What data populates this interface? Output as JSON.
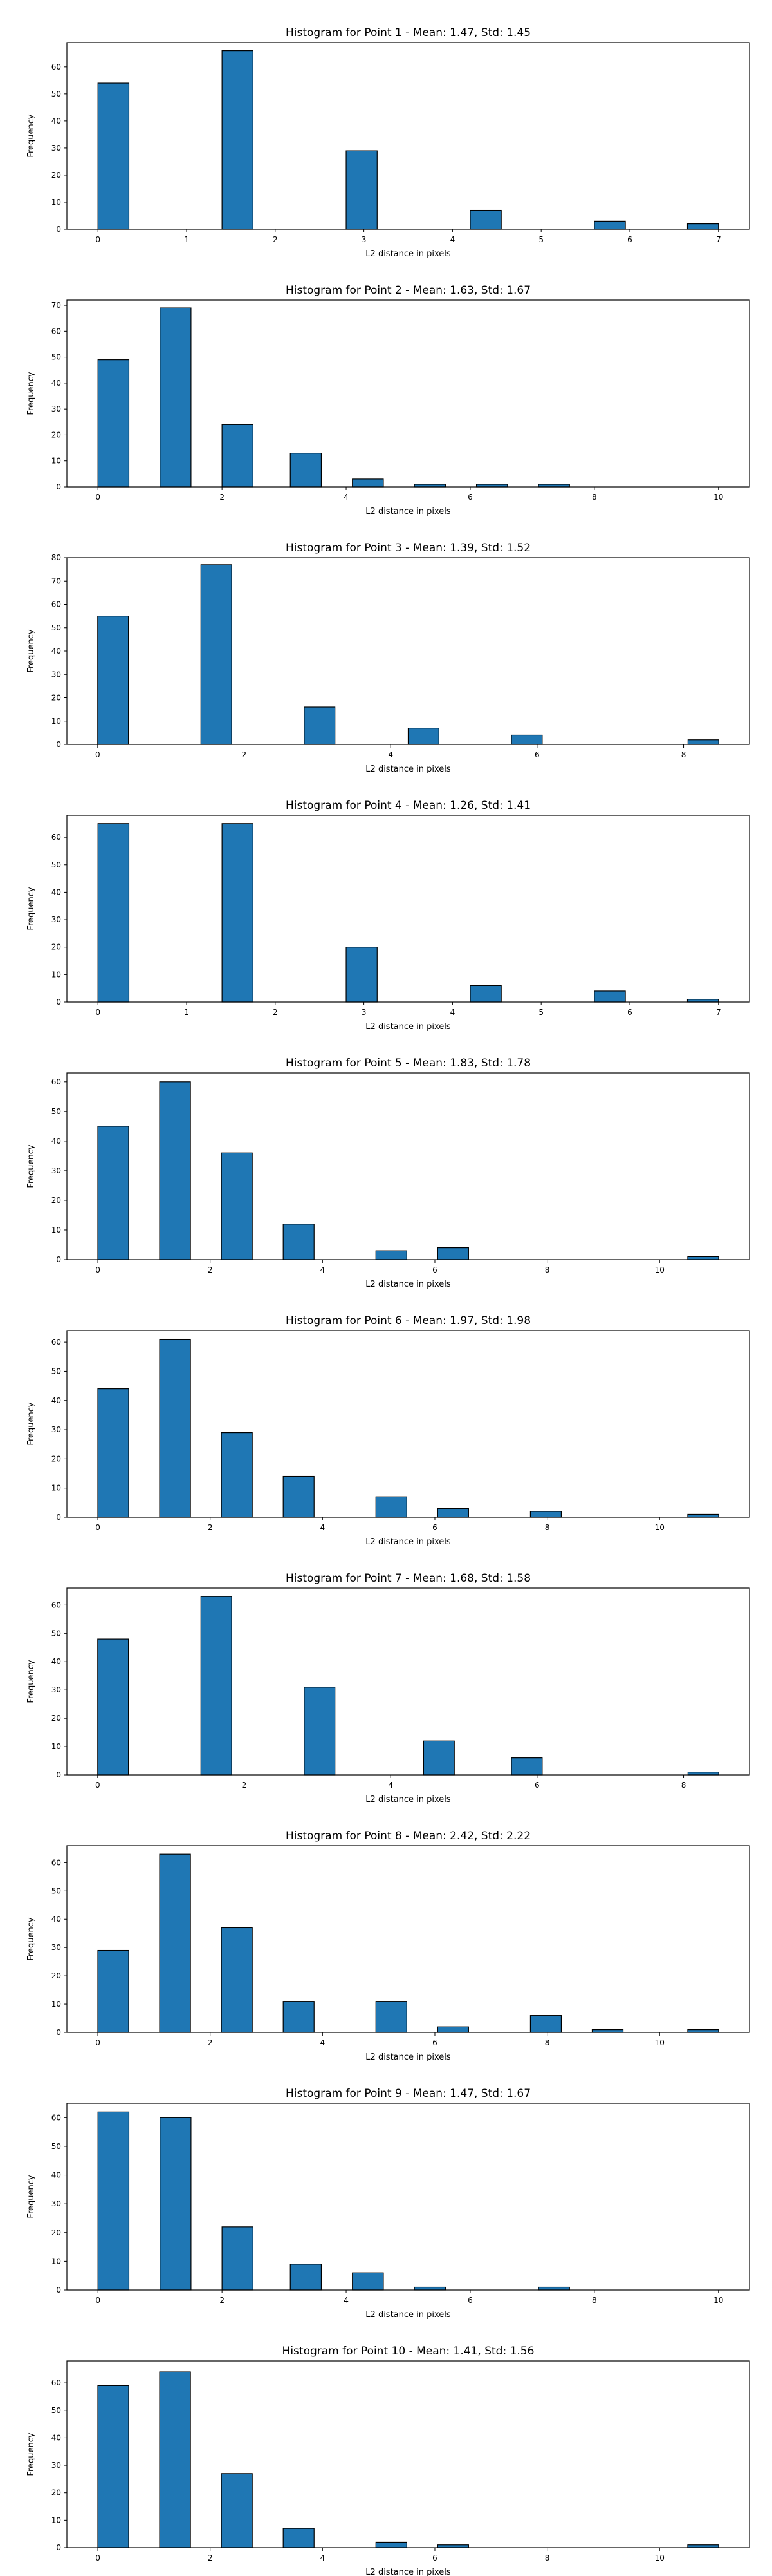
{
  "figure": {
    "bar_color": "#1f77b4",
    "edge_color": "#000000",
    "background": "#ffffff"
  },
  "chart_data": [
    {
      "type": "bar",
      "title": "Histogram for Point 1 - Mean: 1.47, Std: 1.45",
      "xlabel": "L2 distance in pixels",
      "ylabel": "Frequency",
      "xlim": [
        -0.35,
        7.35
      ],
      "ylim": [
        0,
        69
      ],
      "xticks": [
        0,
        1,
        2,
        3,
        4,
        5,
        6,
        7
      ],
      "yticks": [
        0,
        10,
        20,
        30,
        40,
        50,
        60
      ],
      "bin_width": 0.35,
      "bins": [
        [
          0,
          54
        ],
        [
          1.4,
          66
        ],
        [
          2.8,
          29
        ],
        [
          4.2,
          7
        ],
        [
          5.6,
          3
        ],
        [
          6.65,
          2
        ]
      ]
    },
    {
      "type": "bar",
      "title": "Histogram for Point 2 - Mean: 1.63, Std: 1.67",
      "xlabel": "L2 distance in pixels",
      "ylabel": "Frequency",
      "xlim": [
        -0.5,
        10.5
      ],
      "ylim": [
        0,
        72
      ],
      "xticks": [
        0,
        2,
        4,
        6,
        8,
        10
      ],
      "yticks": [
        0,
        10,
        20,
        30,
        40,
        50,
        60,
        70
      ],
      "bin_width": 0.5,
      "bins": [
        [
          0,
          49
        ],
        [
          1,
          69
        ],
        [
          2,
          24
        ],
        [
          3.1,
          13
        ],
        [
          4.1,
          3
        ],
        [
          5.1,
          1
        ],
        [
          6.1,
          1
        ],
        [
          7.1,
          1
        ]
      ]
    },
    {
      "type": "bar",
      "title": "Histogram for Point 3 - Mean: 1.39, Std: 1.52",
      "xlabel": "L2 distance in pixels",
      "ylabel": "Frequency",
      "xlim": [
        -0.42,
        8.9
      ],
      "ylim": [
        0,
        80
      ],
      "xticks": [
        0,
        2,
        4,
        6,
        8
      ],
      "yticks": [
        0,
        10,
        20,
        30,
        40,
        50,
        60,
        70,
        80
      ],
      "bin_width": 0.42,
      "bins": [
        [
          0,
          55
        ],
        [
          1.41,
          77
        ],
        [
          2.82,
          16
        ],
        [
          4.24,
          7
        ],
        [
          5.65,
          4
        ],
        [
          8.06,
          2
        ]
      ]
    },
    {
      "type": "bar",
      "title": "Histogram for Point 4 - Mean: 1.26, Std: 1.41",
      "xlabel": "L2 distance in pixels",
      "ylabel": "Frequency",
      "xlim": [
        -0.35,
        7.35
      ],
      "ylim": [
        0,
        68
      ],
      "xticks": [
        0,
        1,
        2,
        3,
        4,
        5,
        6,
        7
      ],
      "yticks": [
        0,
        10,
        20,
        30,
        40,
        50,
        60
      ],
      "bin_width": 0.35,
      "bins": [
        [
          0,
          65
        ],
        [
          1.4,
          65
        ],
        [
          2.8,
          20
        ],
        [
          4.2,
          6
        ],
        [
          5.6,
          4
        ],
        [
          6.65,
          1
        ]
      ]
    },
    {
      "type": "bar",
      "title": "Histogram for Point 5 - Mean: 1.83, Std: 1.78",
      "xlabel": "L2 distance in pixels",
      "ylabel": "Frequency",
      "xlim": [
        -0.55,
        11.6
      ],
      "ylim": [
        0,
        63
      ],
      "xticks": [
        0,
        2,
        4,
        6,
        8,
        10
      ],
      "yticks": [
        0,
        10,
        20,
        30,
        40,
        50,
        60
      ],
      "bin_width": 0.55,
      "bins": [
        [
          0,
          45
        ],
        [
          1.1,
          60
        ],
        [
          2.2,
          36
        ],
        [
          3.3,
          12
        ],
        [
          4.95,
          3
        ],
        [
          6.05,
          4
        ],
        [
          10.5,
          1
        ]
      ]
    },
    {
      "type": "bar",
      "title": "Histogram for Point 6 - Mean: 1.97, Std: 1.98",
      "xlabel": "L2 distance in pixels",
      "ylabel": "Frequency",
      "xlim": [
        -0.55,
        11.6
      ],
      "ylim": [
        0,
        64
      ],
      "xticks": [
        0,
        2,
        4,
        6,
        8,
        10
      ],
      "yticks": [
        0,
        10,
        20,
        30,
        40,
        50,
        60
      ],
      "bin_width": 0.55,
      "bins": [
        [
          0,
          44
        ],
        [
          1.1,
          61
        ],
        [
          2.2,
          29
        ],
        [
          3.3,
          14
        ],
        [
          4.95,
          7
        ],
        [
          6.05,
          3
        ],
        [
          7.7,
          2
        ],
        [
          10.5,
          1
        ]
      ]
    },
    {
      "type": "bar",
      "title": "Histogram for Point 7 - Mean: 1.68, Std: 1.58",
      "xlabel": "L2 distance in pixels",
      "ylabel": "Frequency",
      "xlim": [
        -0.42,
        8.9
      ],
      "ylim": [
        0,
        66
      ],
      "xticks": [
        0,
        2,
        4,
        6,
        8
      ],
      "yticks": [
        0,
        10,
        20,
        30,
        40,
        50,
        60
      ],
      "bin_width": 0.42,
      "bins": [
        [
          0,
          48
        ],
        [
          1.41,
          63
        ],
        [
          2.82,
          31
        ],
        [
          4.45,
          12
        ],
        [
          5.65,
          6
        ],
        [
          8.06,
          1
        ]
      ]
    },
    {
      "type": "bar",
      "title": "Histogram for Point 8 - Mean: 2.42, Std: 2.22",
      "xlabel": "L2 distance in pixels",
      "ylabel": "Frequency",
      "xlim": [
        -0.55,
        11.6
      ],
      "ylim": [
        0,
        66
      ],
      "xticks": [
        0,
        2,
        4,
        6,
        8,
        10
      ],
      "yticks": [
        0,
        10,
        20,
        30,
        40,
        50,
        60
      ],
      "bin_width": 0.55,
      "bins": [
        [
          0,
          29
        ],
        [
          1.1,
          63
        ],
        [
          2.2,
          37
        ],
        [
          3.3,
          11
        ],
        [
          4.95,
          11
        ],
        [
          6.05,
          2
        ],
        [
          7.7,
          6
        ],
        [
          8.8,
          1
        ],
        [
          10.5,
          1
        ]
      ]
    },
    {
      "type": "bar",
      "title": "Histogram for Point 9 - Mean: 1.47, Std: 1.67",
      "xlabel": "L2 distance in pixels",
      "ylabel": "Frequency",
      "xlim": [
        -0.5,
        10.5
      ],
      "ylim": [
        0,
        65
      ],
      "xticks": [
        0,
        2,
        4,
        6,
        8,
        10
      ],
      "yticks": [
        0,
        10,
        20,
        30,
        40,
        50,
        60
      ],
      "bin_width": 0.5,
      "bins": [
        [
          0,
          62
        ],
        [
          1,
          60
        ],
        [
          2,
          22
        ],
        [
          3.1,
          9
        ],
        [
          4.1,
          6
        ],
        [
          5.1,
          1
        ],
        [
          7.1,
          1
        ]
      ]
    },
    {
      "type": "bar",
      "title": "Histogram for Point 10 - Mean: 1.41, Std: 1.56",
      "xlabel": "L2 distance in pixels",
      "ylabel": "Frequency",
      "xlim": [
        -0.55,
        11.6
      ],
      "ylim": [
        0,
        68
      ],
      "xticks": [
        0,
        2,
        4,
        6,
        8,
        10
      ],
      "yticks": [
        0,
        10,
        20,
        30,
        40,
        50,
        60
      ],
      "bin_width": 0.55,
      "bins": [
        [
          0,
          59
        ],
        [
          1.1,
          64
        ],
        [
          2.2,
          27
        ],
        [
          3.3,
          7
        ],
        [
          4.95,
          2
        ],
        [
          6.05,
          1
        ],
        [
          10.5,
          1
        ]
      ]
    }
  ]
}
